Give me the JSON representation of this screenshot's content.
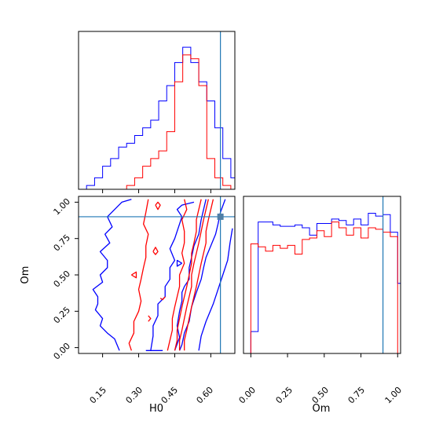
{
  "chart_data": {
    "type": "corner",
    "parameters": [
      "H0",
      "Om"
    ],
    "truths": {
      "H0": 0.64,
      "Om": 0.9
    },
    "colors": {
      "series_a": "#0000ff",
      "series_b": "#ff0000",
      "truth": "#1f77b4"
    },
    "panels": [
      {
        "id": "hist_H0",
        "type": "histogram",
        "xlim": [
          0.05,
          0.7
        ],
        "bin_edges": [
          0.05,
          0.0833,
          0.1167,
          0.15,
          0.1833,
          0.2167,
          0.25,
          0.2833,
          0.3167,
          0.35,
          0.3833,
          0.4167,
          0.45,
          0.4833,
          0.5167,
          0.55,
          0.5833,
          0.6167,
          0.65,
          0.6833,
          0.7
        ],
        "series": [
          {
            "color": "#0000ff",
            "heights": [
              0,
              1,
              3,
              6,
              8,
              11,
              12,
              14,
              16,
              18,
              23,
              27,
              33,
              37,
              33,
              28,
              23,
              16,
              8,
              3
            ]
          },
          {
            "color": "#ff0000",
            "heights": [
              0,
              0,
              0,
              0,
              0,
              0,
              1,
              3,
              6,
              8,
              10,
              15,
              28,
              35,
              34,
              27,
              8,
              3,
              1,
              0
            ]
          }
        ]
      },
      {
        "id": "hist_Om",
        "type": "histogram",
        "xlim": [
          -0.05,
          1.02
        ],
        "xticks": [
          "0.00",
          "0.25",
          "0.50",
          "0.75",
          "1.00"
        ],
        "xlabel": "Om",
        "bin_edges": [
          -0.05,
          0.0,
          0.05,
          0.1,
          0.15,
          0.2,
          0.25,
          0.3,
          0.35,
          0.4,
          0.45,
          0.5,
          0.55,
          0.6,
          0.65,
          0.7,
          0.75,
          0.8,
          0.85,
          0.9,
          0.95,
          1.0,
          1.02
        ],
        "series": [
          {
            "color": "#0000ff",
            "heights": [
              0,
              0.15,
              0.9,
              0.9,
              0.88,
              0.87,
              0.87,
              0.88,
              0.86,
              0.81,
              0.89,
              0.89,
              0.92,
              0.91,
              0.88,
              0.92,
              0.88,
              0.96,
              0.94,
              0.95,
              0.83,
              0.48
            ]
          },
          {
            "color": "#ff0000",
            "heights": [
              0,
              0.75,
              0.73,
              0.7,
              0.74,
              0.72,
              0.74,
              0.68,
              0.78,
              0.79,
              0.84,
              0.8,
              0.9,
              0.86,
              0.81,
              0.86,
              0.79,
              0.86,
              0.85,
              0.83,
              0.8,
              0
            ]
          }
        ]
      },
      {
        "id": "contour_H0_Om",
        "type": "contour",
        "xlim": [
          0.05,
          0.7
        ],
        "ylim": [
          -0.04,
          1.04
        ],
        "xticks": [
          "0.15",
          "0.30",
          "0.45",
          "0.60"
        ],
        "yticks": [
          "0.00",
          "0.25",
          "0.50",
          "0.75",
          "1.00"
        ],
        "xlabel": "H0",
        "ylabel": "Om",
        "series": [
          {
            "color": "#0000ff",
            "lines": [
              [
                [
                  0.27,
                  1.02
                ],
                [
                  0.23,
                  1.0
                ],
                [
                  0.2,
                  0.95
                ],
                [
                  0.17,
                  0.9
                ],
                [
                  0.19,
                  0.83
                ],
                [
                  0.16,
                  0.78
                ],
                [
                  0.18,
                  0.72
                ],
                [
                  0.14,
                  0.66
                ],
                [
                  0.17,
                  0.6
                ],
                [
                  0.17,
                  0.55
                ],
                [
                  0.14,
                  0.5
                ],
                [
                  0.15,
                  0.45
                ],
                [
                  0.11,
                  0.4
                ],
                [
                  0.13,
                  0.35
                ],
                [
                  0.13,
                  0.3
                ],
                [
                  0.12,
                  0.26
                ],
                [
                  0.15,
                  0.2
                ],
                [
                  0.14,
                  0.15
                ],
                [
                  0.17,
                  0.1
                ],
                [
                  0.2,
                  0.06
                ],
                [
                  0.22,
                  -0.02
                ]
              ],
              [
                [
                  0.33,
                  -0.02
                ],
                [
                  0.38,
                  -0.02
                ],
                [
                  0.4,
                  -0.02
                ]
              ],
              [
                [
                  0.53,
                  1.0
                ],
                [
                  0.48,
                  0.98
                ],
                [
                  0.46,
                  0.95
                ],
                [
                  0.48,
                  0.9
                ],
                [
                  0.47,
                  0.85
                ],
                [
                  0.45,
                  0.75
                ],
                [
                  0.43,
                  0.68
                ],
                [
                  0.45,
                  0.6
                ],
                [
                  0.43,
                  0.55
                ],
                [
                  0.43,
                  0.47
                ],
                [
                  0.41,
                  0.42
                ],
                [
                  0.41,
                  0.35
                ],
                [
                  0.38,
                  0.3
                ],
                [
                  0.38,
                  0.22
                ],
                [
                  0.36,
                  0.15
                ],
                [
                  0.36,
                  0.08
                ],
                [
                  0.35,
                  -0.02
                ]
              ],
              [
                [
                  0.58,
                  1.02
                ],
                [
                  0.57,
                  0.95
                ],
                [
                  0.56,
                  0.88
                ],
                [
                  0.55,
                  0.78
                ],
                [
                  0.53,
                  0.7
                ],
                [
                  0.52,
                  0.62
                ],
                [
                  0.51,
                  0.55
                ],
                [
                  0.51,
                  0.47
                ],
                [
                  0.49,
                  0.42
                ],
                [
                  0.48,
                  0.38
                ],
                [
                  0.48,
                  0.32
                ],
                [
                  0.47,
                  0.25
                ],
                [
                  0.46,
                  0.15
                ],
                [
                  0.47,
                  0.07
                ],
                [
                  0.45,
                  -0.02
                ]
              ],
              [
                [
                  0.66,
                  1.02
                ],
                [
                  0.64,
                  0.93
                ],
                [
                  0.63,
                  0.85
                ],
                [
                  0.62,
                  0.78
                ],
                [
                  0.6,
                  0.7
                ],
                [
                  0.58,
                  0.62
                ],
                [
                  0.57,
                  0.55
                ],
                [
                  0.56,
                  0.47
                ],
                [
                  0.54,
                  0.38
                ],
                [
                  0.52,
                  0.28
                ],
                [
                  0.51,
                  0.18
                ],
                [
                  0.49,
                  0.1
                ],
                [
                  0.48,
                  0.02
                ],
                [
                  0.47,
                  -0.02
                ]
              ],
              [
                [
                  0.69,
                  0.82
                ],
                [
                  0.68,
                  0.72
                ],
                [
                  0.67,
                  0.6
                ],
                [
                  0.65,
                  0.5
                ],
                [
                  0.63,
                  0.4
                ],
                [
                  0.61,
                  0.3
                ],
                [
                  0.58,
                  0.18
                ],
                [
                  0.56,
                  0.08
                ],
                [
                  0.55,
                  -0.02
                ]
              ],
              [
                [
                  0.48,
                  0.58
                ],
                [
                  0.46,
                  0.56
                ],
                [
                  0.46,
                  0.6
                ],
                [
                  0.48,
                  0.58
                ]
              ]
            ]
          },
          {
            "color": "#ff0000",
            "lines": [
              [
                [
                  0.34,
                  1.02
                ],
                [
                  0.33,
                  0.93
                ],
                [
                  0.32,
                  0.85
                ],
                [
                  0.34,
                  0.78
                ],
                [
                  0.33,
                  0.7
                ],
                [
                  0.33,
                  0.62
                ],
                [
                  0.32,
                  0.55
                ],
                [
                  0.31,
                  0.47
                ],
                [
                  0.3,
                  0.4
                ],
                [
                  0.31,
                  0.32
                ],
                [
                  0.3,
                  0.25
                ],
                [
                  0.28,
                  0.18
                ],
                [
                  0.28,
                  0.1
                ],
                [
                  0.26,
                  0.03
                ],
                [
                  0.27,
                  -0.02
                ]
              ],
              [
                [
                  0.49,
                  1.02
                ],
                [
                  0.5,
                  0.95
                ],
                [
                  0.48,
                  0.88
                ],
                [
                  0.49,
                  0.8
                ],
                [
                  0.49,
                  0.72
                ],
                [
                  0.48,
                  0.65
                ],
                [
                  0.49,
                  0.58
                ],
                [
                  0.47,
                  0.5
                ],
                [
                  0.47,
                  0.42
                ],
                [
                  0.46,
                  0.35
                ],
                [
                  0.45,
                  0.28
                ],
                [
                  0.44,
                  0.2
                ],
                [
                  0.44,
                  0.12
                ],
                [
                  0.43,
                  0.05
                ],
                [
                  0.42,
                  -0.02
                ]
              ],
              [
                [
                  0.56,
                  1.02
                ],
                [
                  0.55,
                  0.95
                ],
                [
                  0.54,
                  0.88
                ],
                [
                  0.54,
                  0.8
                ],
                [
                  0.53,
                  0.72
                ],
                [
                  0.52,
                  0.65
                ],
                [
                  0.52,
                  0.58
                ],
                [
                  0.51,
                  0.5
                ],
                [
                  0.5,
                  0.42
                ],
                [
                  0.49,
                  0.35
                ],
                [
                  0.48,
                  0.28
                ],
                [
                  0.47,
                  0.2
                ],
                [
                  0.46,
                  0.12
                ],
                [
                  0.46,
                  0.05
                ],
                [
                  0.45,
                  -0.02
                ]
              ],
              [
                [
                  0.59,
                  1.02
                ],
                [
                  0.58,
                  0.95
                ],
                [
                  0.57,
                  0.88
                ],
                [
                  0.56,
                  0.8
                ],
                [
                  0.55,
                  0.72
                ],
                [
                  0.54,
                  0.65
                ],
                [
                  0.53,
                  0.58
                ],
                [
                  0.52,
                  0.5
                ],
                [
                  0.52,
                  0.42
                ],
                [
                  0.51,
                  0.35
                ],
                [
                  0.5,
                  0.28
                ],
                [
                  0.49,
                  0.2
                ],
                [
                  0.48,
                  0.12
                ],
                [
                  0.47,
                  0.05
                ],
                [
                  0.47,
                  -0.02
                ]
              ],
              [
                [
                  0.61,
                  1.02
                ],
                [
                  0.6,
                  0.95
                ],
                [
                  0.59,
                  0.88
                ],
                [
                  0.58,
                  0.8
                ],
                [
                  0.58,
                  0.72
                ],
                [
                  0.57,
                  0.65
                ],
                [
                  0.56,
                  0.58
                ],
                [
                  0.55,
                  0.5
                ],
                [
                  0.54,
                  0.42
                ],
                [
                  0.53,
                  0.35
                ],
                [
                  0.52,
                  0.28
                ],
                [
                  0.51,
                  0.2
                ],
                [
                  0.5,
                  0.12
                ],
                [
                  0.49,
                  0.05
                ],
                [
                  0.49,
                  -0.02
                ]
              ],
              [
                [
                  0.37,
                  0.98
                ],
                [
                  0.38,
                  0.95
                ],
                [
                  0.39,
                  0.98
                ],
                [
                  0.38,
                  1.0
                ],
                [
                  0.37,
                  0.98
                ]
              ],
              [
                [
                  0.36,
                  0.66
                ],
                [
                  0.37,
                  0.64
                ],
                [
                  0.38,
                  0.66
                ],
                [
                  0.37,
                  0.69
                ],
                [
                  0.36,
                  0.66
                ]
              ],
              [
                [
                  0.27,
                  0.5
                ],
                [
                  0.29,
                  0.48
                ],
                [
                  0.29,
                  0.52
                ],
                [
                  0.27,
                  0.5
                ]
              ],
              [
                [
                  0.39,
                  0.34
                ],
                [
                  0.4,
                  0.33
                ],
                [
                  0.41,
                  0.35
                ]
              ],
              [
                [
                  0.34,
                  0.18
                ],
                [
                  0.35,
                  0.2
                ],
                [
                  0.34,
                  0.22
                ]
              ]
            ]
          }
        ]
      }
    ]
  }
}
